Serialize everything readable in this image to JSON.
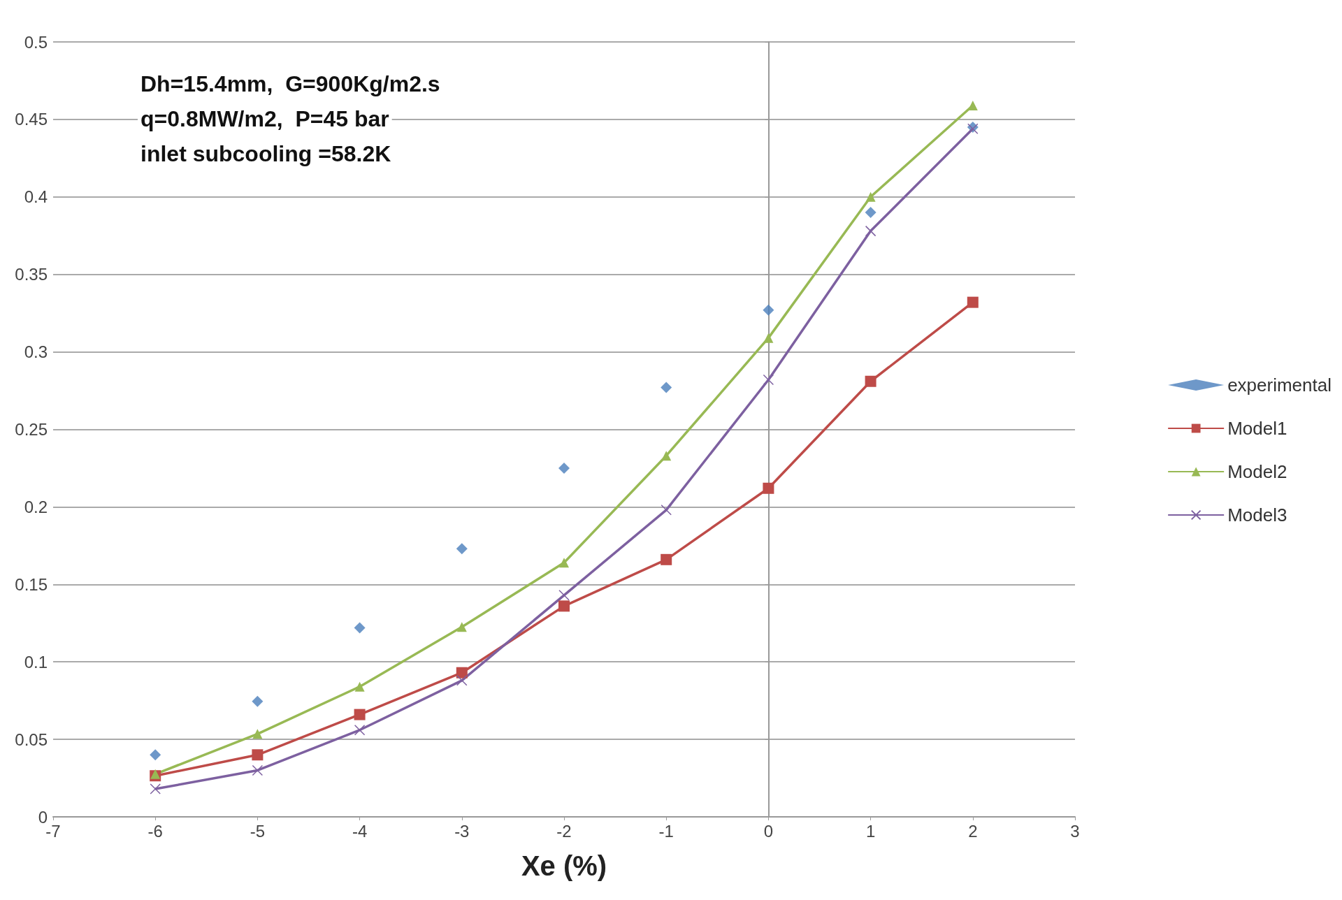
{
  "chart_data": {
    "type": "line",
    "xlabel": "Xe (%)",
    "annotations": [
      "Dh=15.4mm,  G=900Kg/m2.s",
      "q=0.8MW/m2,  P=45 bar",
      "inlet subcooling =58.2K"
    ],
    "x": [
      -6,
      -5,
      -4,
      -3,
      -2,
      -1,
      0,
      1,
      2
    ],
    "series": [
      {
        "name": "experimental",
        "type": "scatter",
        "marker": "diamond",
        "color": "#4a7ebb",
        "values": [
          0.04,
          0.0745,
          0.122,
          0.173,
          0.225,
          0.277,
          0.327,
          0.39,
          0.445
        ]
      },
      {
        "name": "Model1",
        "marker": "square",
        "color": "#be4b48",
        "values": [
          0.0265,
          0.04,
          0.066,
          0.093,
          0.136,
          0.166,
          0.212,
          0.281,
          0.332
        ]
      },
      {
        "name": "Model2",
        "marker": "triangle",
        "color": "#98b954",
        "values": [
          0.0276,
          0.0535,
          0.084,
          0.1225,
          0.164,
          0.233,
          0.309,
          0.4,
          0.459
        ]
      },
      {
        "name": "Model3",
        "marker": "cross",
        "color": "#7d60a0",
        "values": [
          0.018,
          0.03,
          0.056,
          0.088,
          0.143,
          0.198,
          0.282,
          0.378,
          0.444
        ]
      }
    ],
    "xlim": [
      -7,
      3
    ],
    "xticks": [
      -7,
      -6,
      -5,
      -4,
      -3,
      -2,
      -1,
      0,
      1,
      2,
      3
    ],
    "ylim": [
      0,
      0.5
    ],
    "yticks": [
      0,
      0.05,
      0.1,
      0.15,
      0.2,
      0.25,
      0.3,
      0.35,
      0.4,
      0.45,
      0.5
    ],
    "grid": "y",
    "legend": "right"
  }
}
